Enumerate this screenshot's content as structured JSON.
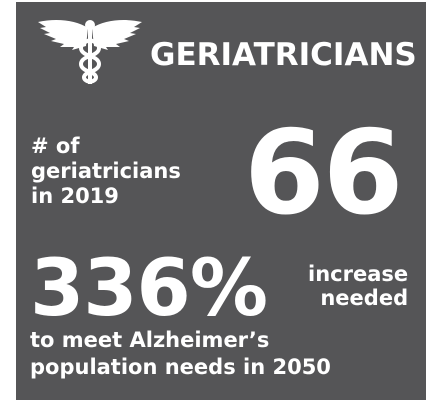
{
  "title": "GERIATRICIANS",
  "count": {
    "label_line1": "# of",
    "label_line2": "geriatricians",
    "label_line3": "in 2019",
    "value": "66"
  },
  "increase": {
    "value": "336%",
    "suffix_line1": "increase",
    "suffix_line2": "needed",
    "desc_line1": "to meet Alzheimer’s",
    "desc_line2": "population needs in 2050"
  },
  "icons": {
    "emblem": "caduceus-icon"
  },
  "colors": {
    "background": "#555557",
    "text": "#ffffff"
  }
}
